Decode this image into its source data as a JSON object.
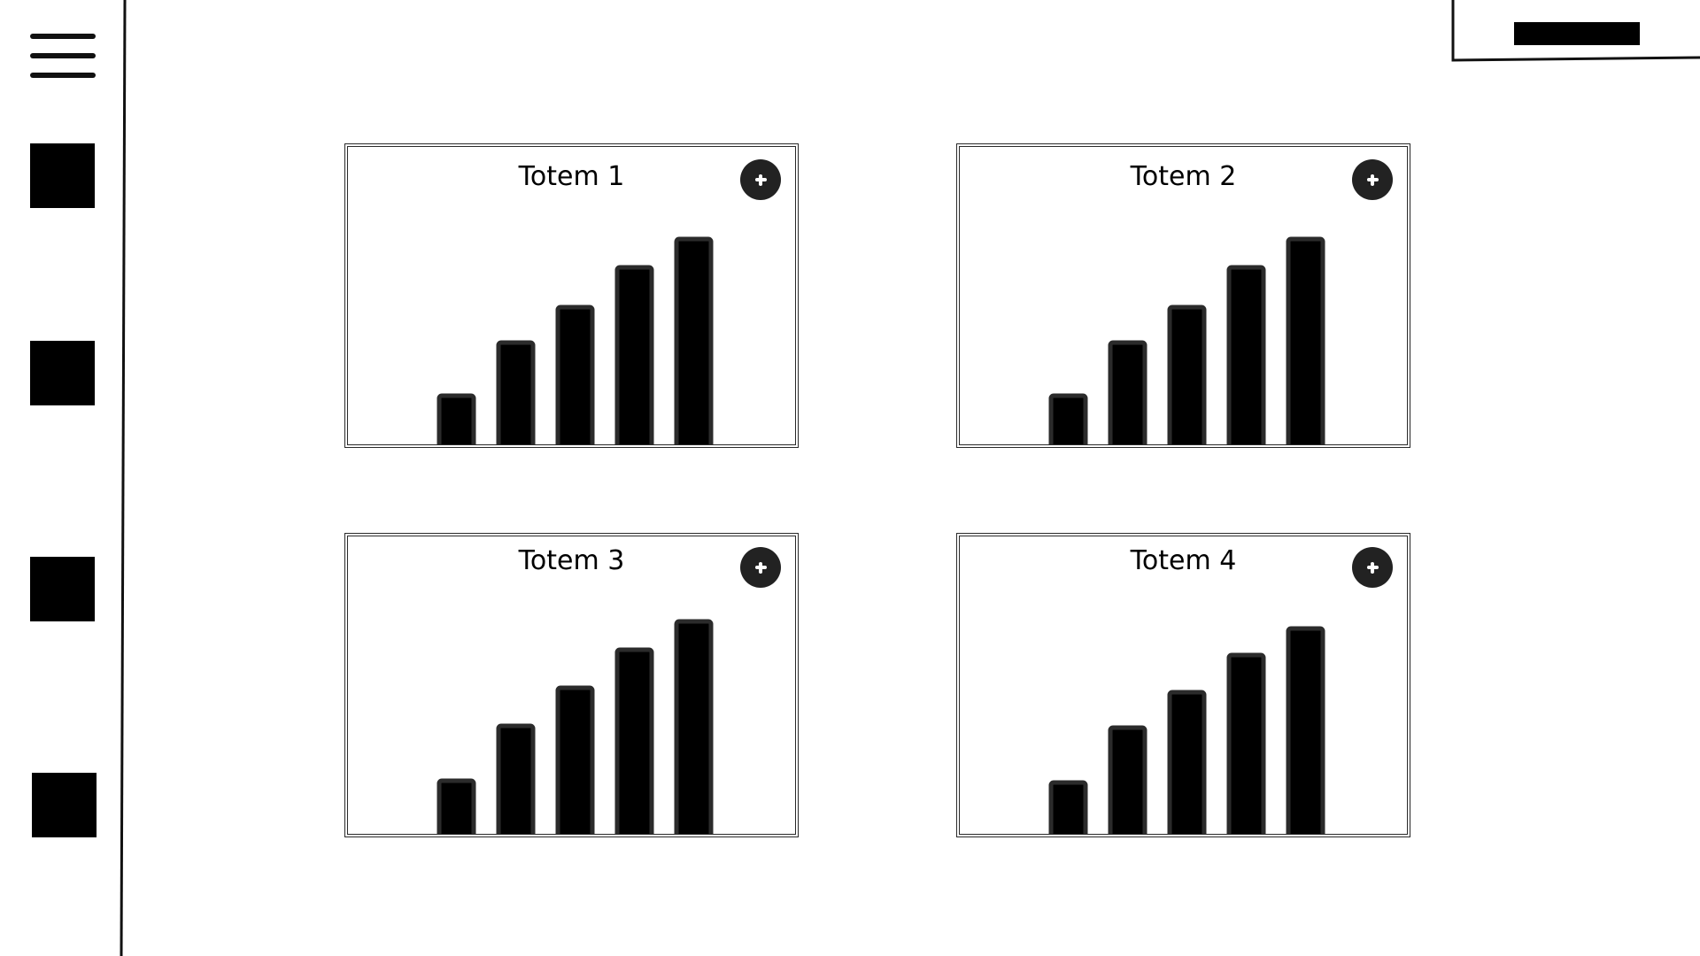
{
  "sidebar": {
    "items": [
      {
        "name": "nav-item-1"
      },
      {
        "name": "nav-item-2"
      },
      {
        "name": "nav-item-3"
      },
      {
        "name": "nav-item-4"
      }
    ]
  },
  "cards": [
    {
      "title": "Totem 1"
    },
    {
      "title": "Totem 2"
    },
    {
      "title": "Totem 3"
    },
    {
      "title": "Totem 4"
    }
  ],
  "chart_data": [
    {
      "type": "bar",
      "categories": [
        "",
        "",
        "",
        "",
        ""
      ],
      "values": [
        55,
        115,
        155,
        200,
        232
      ],
      "title": "Totem 1"
    },
    {
      "type": "bar",
      "categories": [
        "",
        "",
        "",
        "",
        ""
      ],
      "values": [
        55,
        115,
        155,
        200,
        232
      ],
      "title": "Totem 2"
    },
    {
      "type": "bar",
      "categories": [
        "",
        "",
        "",
        "",
        ""
      ],
      "values": [
        60,
        122,
        165,
        208,
        240
      ],
      "title": "Totem 3"
    },
    {
      "type": "bar",
      "categories": [
        "",
        "",
        "",
        "",
        ""
      ],
      "values": [
        58,
        120,
        160,
        202,
        232
      ],
      "title": "Totem 4"
    }
  ]
}
